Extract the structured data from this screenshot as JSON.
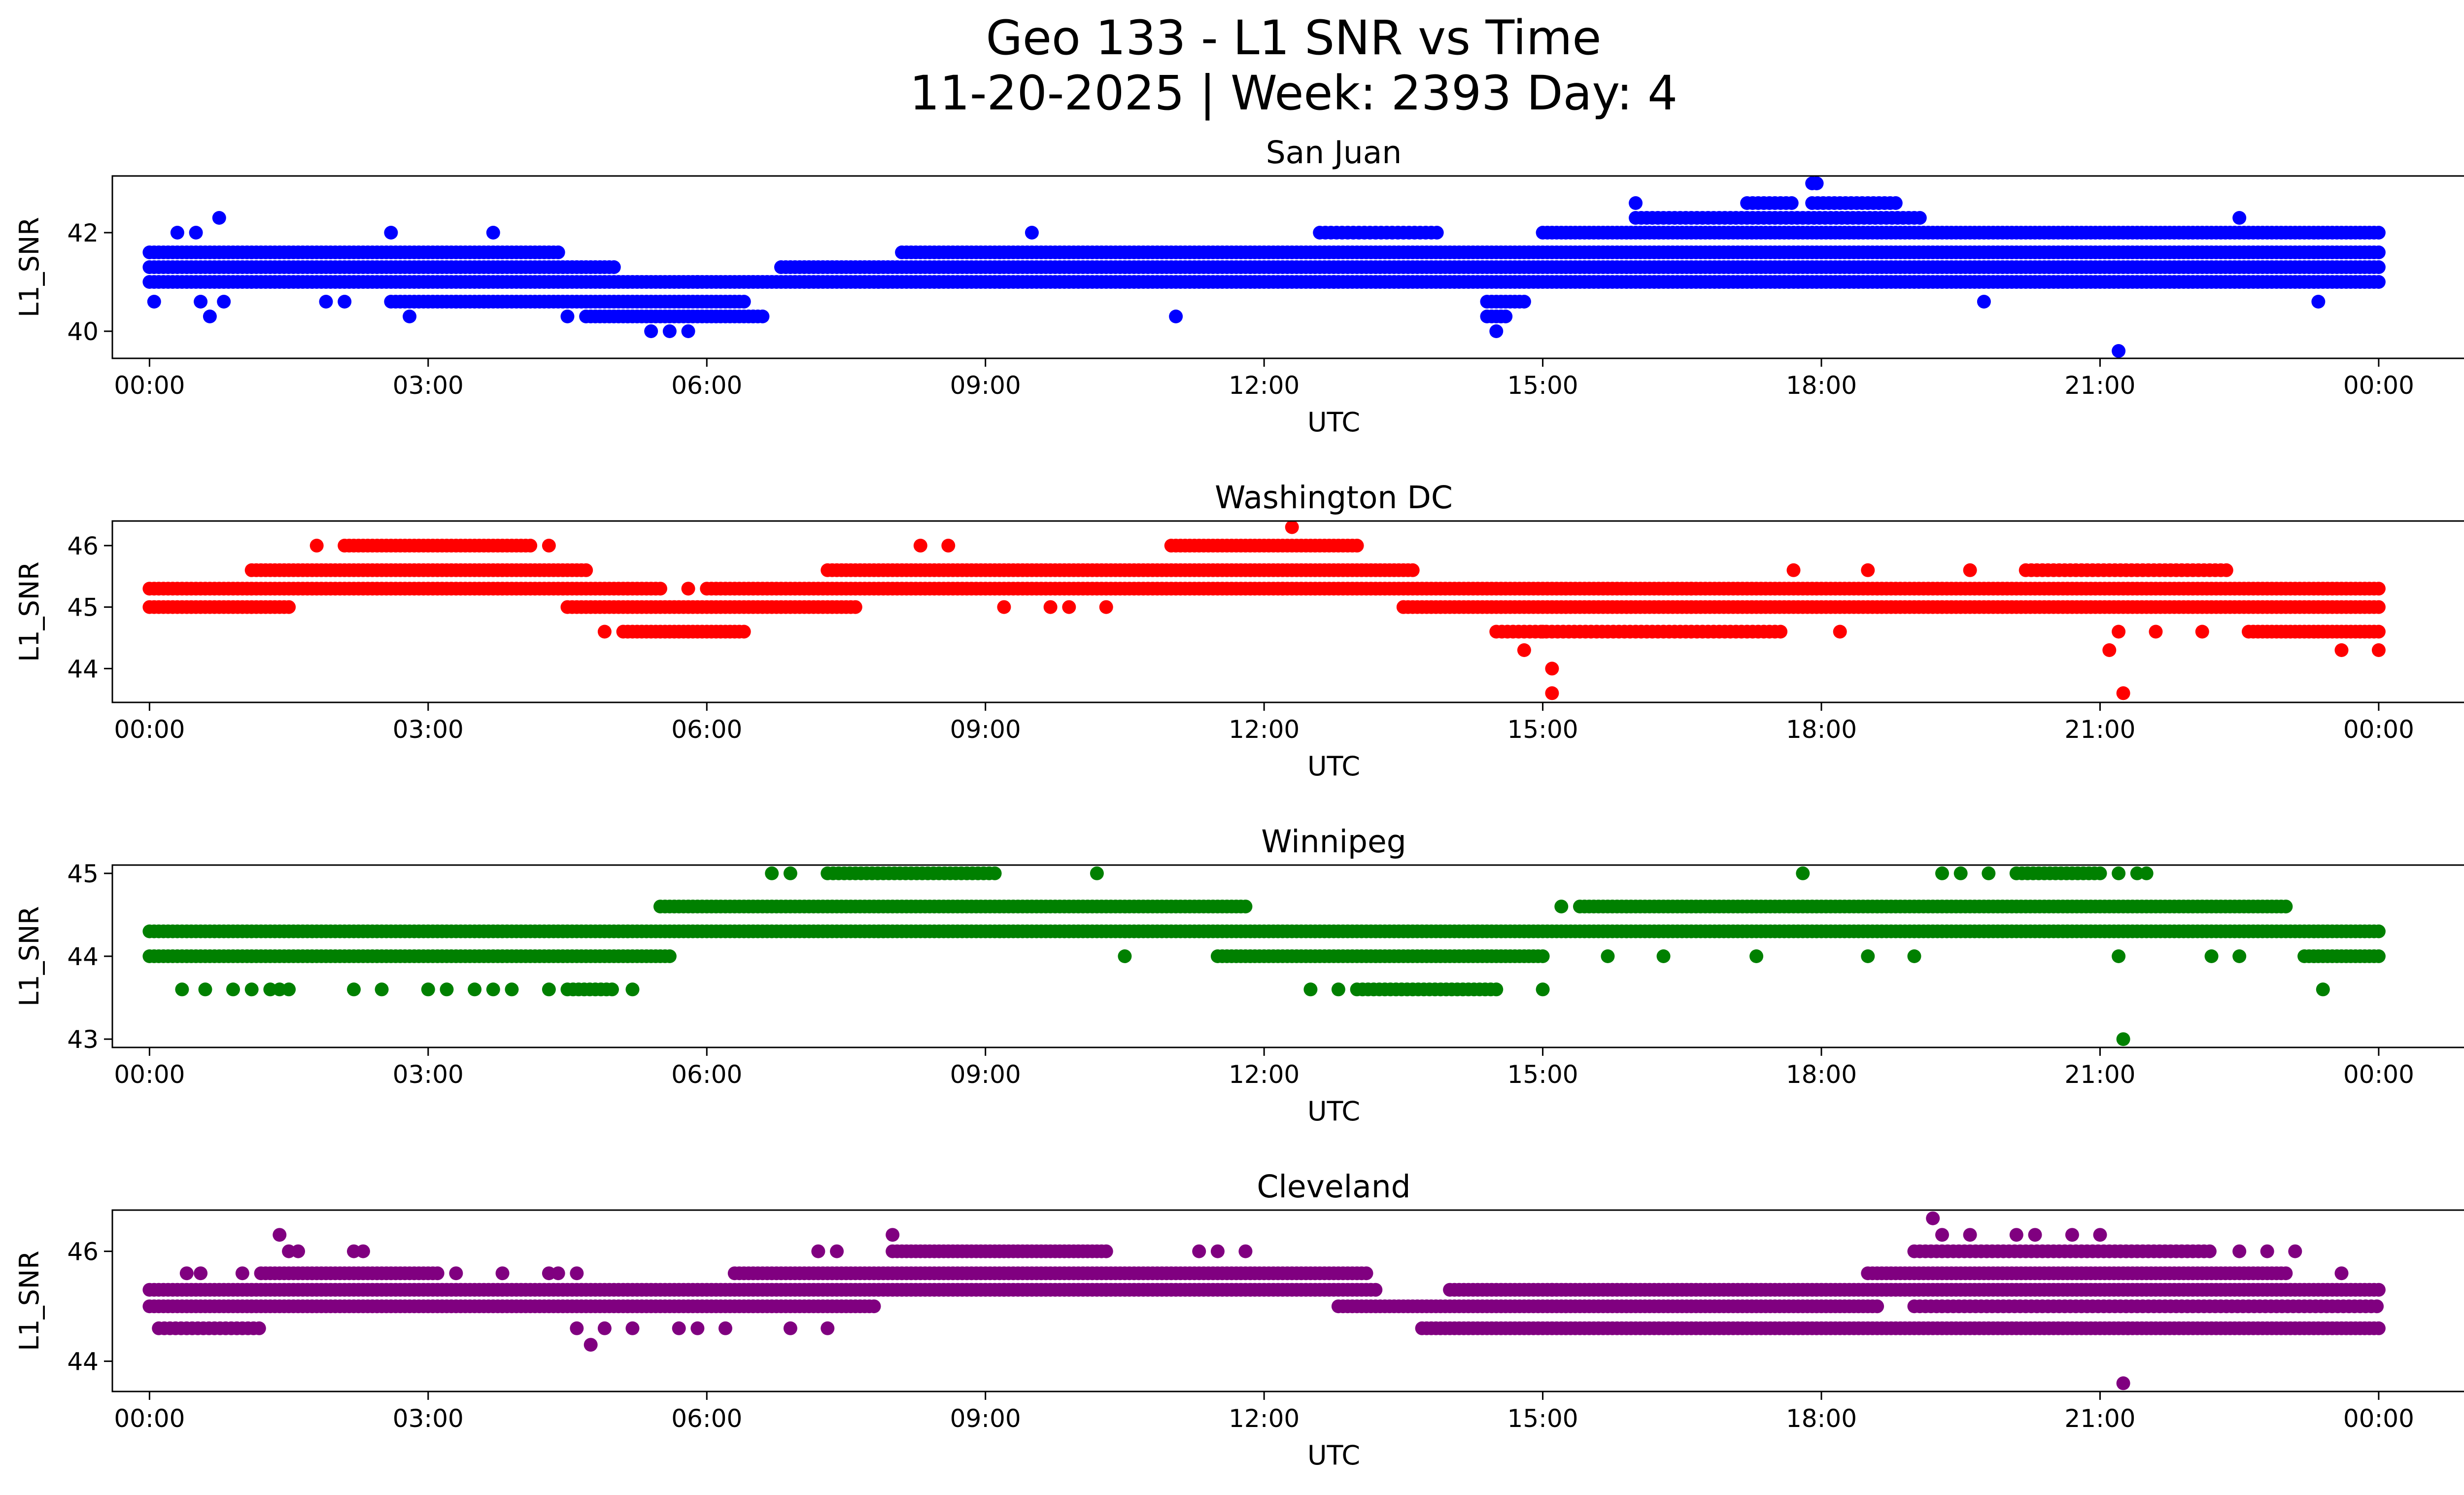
{
  "figure": {
    "title_line1": "Geo 133 - L1 SNR vs Time",
    "title_line2": "11-20-2025 | Week: 2393 Day: 4"
  },
  "chart_data": [
    {
      "type": "scatter",
      "title": "San Juan",
      "xlabel": "UTC",
      "ylabel": "L1_SNR",
      "color": "#0000ff",
      "xlim": [
        -0.4,
        25.9
      ],
      "ylim": [
        39.45,
        43.15
      ],
      "yticks": [
        40,
        42
      ],
      "xticks": [
        0,
        3,
        6,
        9,
        12,
        15,
        18,
        21,
        24
      ],
      "xtick_labels": [
        "00:00",
        "03:00",
        "06:00",
        "09:00",
        "12:00",
        "15:00",
        "18:00",
        "21:00",
        "00:00"
      ],
      "bands": [
        {
          "x0": 0.0,
          "x1": 4.4,
          "y": 41.6,
          "step": 0.05
        },
        {
          "x0": 0.0,
          "x1": 5.0,
          "y": 41.3,
          "step": 0.05
        },
        {
          "x0": 0.0,
          "x1": 5.9,
          "y": 41.0,
          "step": 0.05
        },
        {
          "x0": 2.6,
          "x1": 6.4,
          "y": 40.6,
          "step": 0.05
        },
        {
          "x0": 4.7,
          "x1": 6.6,
          "y": 40.3,
          "step": 0.05
        },
        {
          "x0": 5.9,
          "x1": 24.0,
          "y": 41.0,
          "step": 0.05
        },
        {
          "x0": 6.8,
          "x1": 24.0,
          "y": 41.3,
          "step": 0.05
        },
        {
          "x0": 8.1,
          "x1": 24.0,
          "y": 41.6,
          "step": 0.05
        },
        {
          "x0": 12.6,
          "x1": 13.9,
          "y": 42.0,
          "step": 0.06
        },
        {
          "x0": 15.0,
          "x1": 24.0,
          "y": 42.0,
          "step": 0.05
        },
        {
          "x0": 16.0,
          "x1": 19.1,
          "y": 42.3,
          "step": 0.06
        },
        {
          "x0": 17.2,
          "x1": 17.7,
          "y": 42.6,
          "step": 0.06
        },
        {
          "x0": 17.9,
          "x1": 18.8,
          "y": 42.6,
          "step": 0.06
        },
        {
          "x0": 14.4,
          "x1": 14.8,
          "y": 40.6,
          "step": 0.05
        },
        {
          "x0": 14.4,
          "x1": 14.6,
          "y": 40.3,
          "step": 0.05
        }
      ],
      "points": [
        [
          0.05,
          40.6
        ],
        [
          0.55,
          40.6
        ],
        [
          0.65,
          40.3
        ],
        [
          0.8,
          40.6
        ],
        [
          0.3,
          42.0
        ],
        [
          0.5,
          42.0
        ],
        [
          0.75,
          42.3
        ],
        [
          2.6,
          42.0
        ],
        [
          3.7,
          42.0
        ],
        [
          1.9,
          40.6
        ],
        [
          2.1,
          40.6
        ],
        [
          3.3,
          40.6
        ],
        [
          3.6,
          40.6
        ],
        [
          2.8,
          40.3
        ],
        [
          4.5,
          40.3
        ],
        [
          5.4,
          40.0
        ],
        [
          5.6,
          40.0
        ],
        [
          5.8,
          40.0
        ],
        [
          9.5,
          42.0
        ],
        [
          11.05,
          40.3
        ],
        [
          12.75,
          41.0
        ],
        [
          14.5,
          40.0
        ],
        [
          16.0,
          42.6
        ],
        [
          17.9,
          43.0
        ],
        [
          17.95,
          43.0
        ],
        [
          19.75,
          40.6
        ],
        [
          21.2,
          39.6
        ],
        [
          23.35,
          40.6
        ],
        [
          22.5,
          42.3
        ]
      ]
    },
    {
      "type": "scatter",
      "title": "Washington DC",
      "xlabel": "UTC",
      "ylabel": "L1_SNR",
      "color": "#ff0000",
      "xlim": [
        -0.4,
        25.9
      ],
      "ylim": [
        43.45,
        46.4
      ],
      "yticks": [
        44,
        45,
        46
      ],
      "xticks": [
        0,
        3,
        6,
        9,
        12,
        15,
        18,
        21,
        24
      ],
      "xtick_labels": [
        "00:00",
        "03:00",
        "06:00",
        "09:00",
        "12:00",
        "15:00",
        "18:00",
        "21:00",
        "00:00"
      ],
      "bands": [
        {
          "x0": 0.0,
          "x1": 5.5,
          "y": 45.3,
          "step": 0.05
        },
        {
          "x0": 0.0,
          "x1": 1.5,
          "y": 45.0,
          "step": 0.05
        },
        {
          "x0": 1.1,
          "x1": 4.7,
          "y": 45.6,
          "step": 0.05
        },
        {
          "x0": 2.1,
          "x1": 4.1,
          "y": 46.0,
          "step": 0.05
        },
        {
          "x0": 4.5,
          "x1": 7.6,
          "y": 45.0,
          "step": 0.05
        },
        {
          "x0": 5.1,
          "x1": 6.4,
          "y": 44.6,
          "step": 0.05
        },
        {
          "x0": 6.0,
          "x1": 24.0,
          "y": 45.3,
          "step": 0.05
        },
        {
          "x0": 7.3,
          "x1": 13.6,
          "y": 45.6,
          "step": 0.05
        },
        {
          "x0": 11.0,
          "x1": 13.0,
          "y": 46.0,
          "step": 0.05
        },
        {
          "x0": 13.5,
          "x1": 24.0,
          "y": 45.0,
          "step": 0.05
        },
        {
          "x0": 14.5,
          "x1": 17.6,
          "y": 44.6,
          "step": 0.06
        },
        {
          "x0": 20.2,
          "x1": 22.4,
          "y": 45.6,
          "step": 0.06
        },
        {
          "x0": 22.6,
          "x1": 24.0,
          "y": 44.6,
          "step": 0.05
        }
      ],
      "points": [
        [
          1.8,
          46.0
        ],
        [
          4.3,
          46.0
        ],
        [
          4.9,
          44.6
        ],
        [
          5.8,
          45.3
        ],
        [
          8.3,
          46.0
        ],
        [
          8.6,
          46.0
        ],
        [
          9.2,
          45.0
        ],
        [
          9.7,
          45.0
        ],
        [
          9.9,
          45.0
        ],
        [
          10.3,
          45.0
        ],
        [
          12.3,
          46.3
        ],
        [
          12.2,
          45.3
        ],
        [
          13.5,
          45.0
        ],
        [
          14.8,
          44.3
        ],
        [
          15.1,
          44.0
        ],
        [
          15.1,
          43.6
        ],
        [
          15.0,
          44.6
        ],
        [
          16.6,
          45.3
        ],
        [
          17.7,
          45.6
        ],
        [
          18.2,
          44.6
        ],
        [
          18.5,
          45.6
        ],
        [
          19.6,
          45.6
        ],
        [
          21.1,
          44.3
        ],
        [
          21.2,
          44.6
        ],
        [
          21.25,
          43.6
        ],
        [
          21.6,
          44.6
        ],
        [
          22.1,
          44.6
        ],
        [
          23.6,
          44.3
        ],
        [
          24.0,
          44.3
        ]
      ]
    },
    {
      "type": "scatter",
      "title": "Winnipeg",
      "xlabel": "UTC",
      "ylabel": "L1_SNR",
      "color": "#008000",
      "xlim": [
        -0.4,
        25.9
      ],
      "ylim": [
        42.9,
        45.1
      ],
      "yticks": [
        43,
        44,
        45
      ],
      "xticks": [
        0,
        3,
        6,
        9,
        12,
        15,
        18,
        21,
        24
      ],
      "xtick_labels": [
        "00:00",
        "03:00",
        "06:00",
        "09:00",
        "12:00",
        "15:00",
        "18:00",
        "21:00",
        "00:00"
      ],
      "bands": [
        {
          "x0": 0.0,
          "x1": 24.0,
          "y": 44.3,
          "step": 0.05
        },
        {
          "x0": 0.0,
          "x1": 5.6,
          "y": 44.0,
          "step": 0.05
        },
        {
          "x0": 5.5,
          "x1": 11.8,
          "y": 44.6,
          "step": 0.05
        },
        {
          "x0": 7.3,
          "x1": 9.1,
          "y": 45.0,
          "step": 0.06
        },
        {
          "x0": 11.5,
          "x1": 15.0,
          "y": 44.0,
          "step": 0.05
        },
        {
          "x0": 13.0,
          "x1": 14.5,
          "y": 43.6,
          "step": 0.06
        },
        {
          "x0": 15.4,
          "x1": 23.0,
          "y": 44.6,
          "step": 0.05
        },
        {
          "x0": 20.1,
          "x1": 21.0,
          "y": 45.0,
          "step": 0.06
        },
        {
          "x0": 23.2,
          "x1": 24.0,
          "y": 44.0,
          "step": 0.05
        },
        {
          "x0": 4.5,
          "x1": 5.0,
          "y": 43.6,
          "step": 0.06
        }
      ],
      "points": [
        [
          0.35,
          43.6
        ],
        [
          0.6,
          43.6
        ],
        [
          0.9,
          43.6
        ],
        [
          1.1,
          43.6
        ],
        [
          1.3,
          43.6
        ],
        [
          1.4,
          43.6
        ],
        [
          1.5,
          43.6
        ],
        [
          2.2,
          43.6
        ],
        [
          2.5,
          43.6
        ],
        [
          3.0,
          43.6
        ],
        [
          3.2,
          43.6
        ],
        [
          3.5,
          43.6
        ],
        [
          3.7,
          43.6
        ],
        [
          3.9,
          43.6
        ],
        [
          4.3,
          43.6
        ],
        [
          5.2,
          43.6
        ],
        [
          6.7,
          45.0
        ],
        [
          6.9,
          45.0
        ],
        [
          10.2,
          45.0
        ],
        [
          10.5,
          44.0
        ],
        [
          12.5,
          43.6
        ],
        [
          12.8,
          43.6
        ],
        [
          15.0,
          43.6
        ],
        [
          15.2,
          44.6
        ],
        [
          15.7,
          44.0
        ],
        [
          16.3,
          44.0
        ],
        [
          17.3,
          44.0
        ],
        [
          17.8,
          45.0
        ],
        [
          18.5,
          44.0
        ],
        [
          19.0,
          44.0
        ],
        [
          19.3,
          45.0
        ],
        [
          19.5,
          45.0
        ],
        [
          19.8,
          45.0
        ],
        [
          21.2,
          45.0
        ],
        [
          21.4,
          45.0
        ],
        [
          21.5,
          45.0
        ],
        [
          21.2,
          44.0
        ],
        [
          21.25,
          43.0
        ],
        [
          22.2,
          44.0
        ],
        [
          22.5,
          44.0
        ],
        [
          23.4,
          43.6
        ],
        [
          7.9,
          44.3
        ]
      ]
    },
    {
      "type": "scatter",
      "title": "Cleveland",
      "xlabel": "UTC",
      "ylabel": "L1_SNR",
      "color": "#800080",
      "xlim": [
        -0.4,
        25.9
      ],
      "ylim": [
        43.45,
        46.75
      ],
      "yticks": [
        44,
        46
      ],
      "xticks": [
        0,
        3,
        6,
        9,
        12,
        15,
        18,
        21,
        24
      ],
      "xtick_labels": [
        "00:00",
        "03:00",
        "06:00",
        "09:00",
        "12:00",
        "15:00",
        "18:00",
        "21:00",
        "00:00"
      ],
      "bands": [
        {
          "x0": 0.0,
          "x1": 13.2,
          "y": 45.3,
          "step": 0.05
        },
        {
          "x0": 0.0,
          "x1": 7.8,
          "y": 45.0,
          "step": 0.05
        },
        {
          "x0": 0.1,
          "x1": 1.2,
          "y": 44.6,
          "step": 0.06
        },
        {
          "x0": 1.2,
          "x1": 3.1,
          "y": 45.6,
          "step": 0.05
        },
        {
          "x0": 6.3,
          "x1": 13.1,
          "y": 45.6,
          "step": 0.05
        },
        {
          "x0": 8.0,
          "x1": 10.3,
          "y": 46.0,
          "step": 0.05
        },
        {
          "x0": 12.8,
          "x1": 18.6,
          "y": 45.0,
          "step": 0.05
        },
        {
          "x0": 13.7,
          "x1": 24.0,
          "y": 44.6,
          "step": 0.05
        },
        {
          "x0": 14.0,
          "x1": 24.0,
          "y": 45.3,
          "step": 0.05
        },
        {
          "x0": 18.5,
          "x1": 23.0,
          "y": 45.6,
          "step": 0.05
        },
        {
          "x0": 19.0,
          "x1": 22.2,
          "y": 46.0,
          "step": 0.06
        },
        {
          "x0": 19.0,
          "x1": 24.0,
          "y": 45.0,
          "step": 0.06
        }
      ],
      "points": [
        [
          0.4,
          45.6
        ],
        [
          0.55,
          45.6
        ],
        [
          1.0,
          45.6
        ],
        [
          1.4,
          46.3
        ],
        [
          1.5,
          46.0
        ],
        [
          1.6,
          46.0
        ],
        [
          2.2,
          46.0
        ],
        [
          2.3,
          46.0
        ],
        [
          3.3,
          45.6
        ],
        [
          3.8,
          45.6
        ],
        [
          4.3,
          45.6
        ],
        [
          4.4,
          45.6
        ],
        [
          4.6,
          45.6
        ],
        [
          4.6,
          44.6
        ],
        [
          4.75,
          44.3
        ],
        [
          4.9,
          44.6
        ],
        [
          5.2,
          44.6
        ],
        [
          5.7,
          44.6
        ],
        [
          5.9,
          44.6
        ],
        [
          6.2,
          44.6
        ],
        [
          6.9,
          44.6
        ],
        [
          7.3,
          44.6
        ],
        [
          7.2,
          46.0
        ],
        [
          7.4,
          46.0
        ],
        [
          8.0,
          46.3
        ],
        [
          9.2,
          45.3
        ],
        [
          10.3,
          45.3
        ],
        [
          11.3,
          46.0
        ],
        [
          11.5,
          46.0
        ],
        [
          11.8,
          46.0
        ],
        [
          15.1,
          45.3
        ],
        [
          19.2,
          46.6
        ],
        [
          19.3,
          46.3
        ],
        [
          19.6,
          46.3
        ],
        [
          20.1,
          46.3
        ],
        [
          20.3,
          46.3
        ],
        [
          20.7,
          46.3
        ],
        [
          21.0,
          46.3
        ],
        [
          21.25,
          43.6
        ],
        [
          21.3,
          44.6
        ],
        [
          22.5,
          46.0
        ],
        [
          22.8,
          46.0
        ],
        [
          23.1,
          46.0
        ],
        [
          23.6,
          45.6
        ]
      ]
    }
  ]
}
